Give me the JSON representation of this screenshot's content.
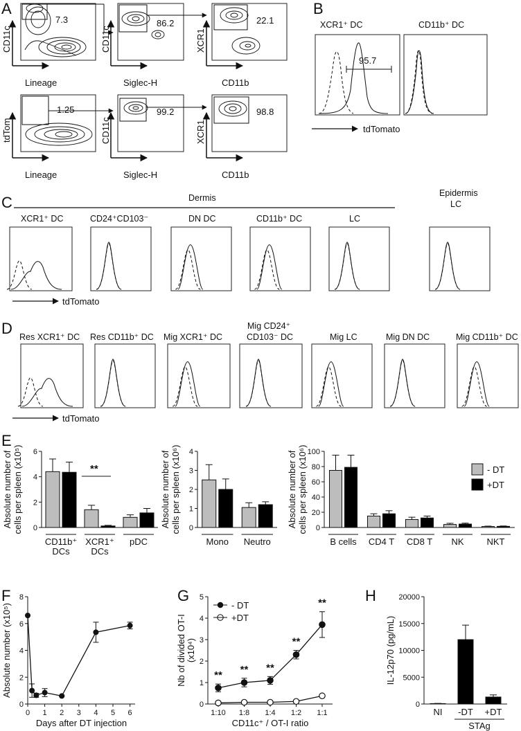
{
  "panels": {
    "A": {
      "letter": "A",
      "row1": [
        {
          "y": "CD11c",
          "x": "Lineage",
          "val": "7.3"
        },
        {
          "y": "CD11c",
          "x": "Siglec-H",
          "val": "86.2"
        },
        {
          "y": "XCR1",
          "x": "CD11b",
          "val": "22.1"
        }
      ],
      "row2": [
        {
          "y": "tdTom",
          "x": "Lineage",
          "val": "1.25"
        },
        {
          "y": "CD11c",
          "x": "Siglec-H",
          "val": "99.2"
        },
        {
          "y": "XCR1",
          "x": "CD11b",
          "val": "98.8"
        }
      ]
    },
    "B": {
      "letter": "B",
      "titles": [
        "XCR1⁺ DC",
        "CD11b⁺ DC"
      ],
      "val": "95.7",
      "xlabel": "tdTomato"
    },
    "C": {
      "letter": "C",
      "group_dermis": "Dermis",
      "group_epidermis_1": "Epidermis",
      "group_epidermis_2": "LC",
      "titles": [
        "XCR1⁺ DC",
        "CD24⁺CD103⁻",
        "DN DC",
        "CD11b⁺ DC",
        "LC"
      ],
      "xlabel": "tdTomato"
    },
    "D": {
      "letter": "D",
      "titles": [
        "Res XCR1⁺ DC",
        "Res CD11b⁺ DC",
        "Mig XCR1⁺ DC",
        "Mig CD24⁺",
        "CD103⁻ DC",
        "Mig LC",
        "Mig DN DC",
        "Mig CD11b⁺ DC"
      ],
      "xlabel": "tdTomato"
    },
    "E": {
      "letter": "E"
    },
    "F": {
      "letter": "F"
    },
    "G": {
      "letter": "G"
    },
    "H": {
      "letter": "H"
    }
  },
  "colors": {
    "minus_dt": "#bdbdbd",
    "plus_dt": "#000000"
  },
  "chart_data": [
    {
      "type": "bar",
      "panel": "E1",
      "ylabel_1": "Absolute number of",
      "ylabel_2": "cells per spleen (x10⁵)",
      "ylim": [
        0,
        6
      ],
      "yticks": [
        "0",
        "2",
        "4",
        "6"
      ],
      "categories": [
        "CD11b⁺ DCs",
        "XCR1⁺ DCs",
        "pDC"
      ],
      "series": [
        {
          "name": "- DT",
          "values": [
            4.4,
            1.4,
            0.8
          ],
          "err": [
            1.0,
            0.35,
            0.2
          ]
        },
        {
          "name": "+DT",
          "values": [
            4.35,
            0.12,
            1.15
          ],
          "err": [
            0.8,
            0.05,
            0.35
          ]
        }
      ],
      "annotation": "**"
    },
    {
      "type": "bar",
      "panel": "E2",
      "ylabel_1": "Absolute number of",
      "ylabel_2": "cells per spleen (x10⁶)",
      "ylim": [
        0,
        4
      ],
      "yticks": [
        "0",
        "1",
        "2",
        "3",
        "4"
      ],
      "categories": [
        "Mono",
        "Neutro"
      ],
      "series": [
        {
          "name": "- DT",
          "values": [
            2.5,
            1.05
          ],
          "err": [
            0.8,
            0.25
          ]
        },
        {
          "name": "+DT",
          "values": [
            2.0,
            1.2
          ],
          "err": [
            0.55,
            0.15
          ]
        }
      ]
    },
    {
      "type": "bar",
      "panel": "E3",
      "ylabel_1": "Absolute number of",
      "ylabel_2": "cells per spleen (x10⁶)",
      "ylim": [
        0,
        100
      ],
      "yticks": [
        "0",
        "20",
        "40",
        "60",
        "80",
        "100"
      ],
      "categories": [
        "B cells",
        "CD4 T",
        "CD8 T",
        "NK",
        "NKT"
      ],
      "series": [
        {
          "name": "- DT",
          "values": [
            75,
            15,
            10.5,
            4,
            1.3
          ],
          "err": [
            20,
            3,
            3,
            1.5,
            0.5
          ]
        },
        {
          "name": "+DT",
          "values": [
            79,
            18,
            12.5,
            4.5,
            1.5
          ],
          "err": [
            16,
            4,
            2.5,
            1.2,
            0.5
          ]
        }
      ],
      "legend": [
        "- DT",
        "+DT"
      ]
    },
    {
      "type": "line",
      "panel": "F",
      "xlabel": "Days after DT injection",
      "ylabel": "Absolute number (x10⁵)",
      "xlim": [
        0,
        6.3
      ],
      "ylim": [
        0,
        8
      ],
      "xticks": [
        "0",
        "1",
        "2",
        "3",
        "4",
        "5",
        "6"
      ],
      "yticks": [
        "0",
        "2",
        "4",
        "6",
        "8"
      ],
      "x": [
        0,
        0.25,
        0.5,
        1,
        2,
        4,
        6
      ],
      "y": [
        6.6,
        1.0,
        0.65,
        0.85,
        0.6,
        5.35,
        5.85
      ],
      "err": [
        0,
        0.5,
        0.15,
        0.3,
        0.05,
        0.75,
        0.25
      ]
    },
    {
      "type": "line",
      "panel": "G",
      "xlabel": "CD11c⁺ / OT-I ratio",
      "ylabel_1": "Nb of divided OT-I",
      "ylabel_2": "(x10⁴)",
      "ylim": [
        0,
        5
      ],
      "yticks": [
        "0",
        "1",
        "2",
        "3",
        "4",
        "5"
      ],
      "categories": [
        "1:10",
        "1:8",
        "1:4",
        "1:2",
        "1:1"
      ],
      "series": [
        {
          "name": "- DT",
          "values": [
            0.75,
            1.0,
            1.1,
            2.3,
            3.7
          ],
          "err": [
            0.18,
            0.2,
            0.18,
            0.2,
            0.6
          ]
        },
        {
          "name": "+DT",
          "values": [
            0.05,
            0.08,
            0.08,
            0.12,
            0.38
          ],
          "err": [
            0.02,
            0.02,
            0.02,
            0.03,
            0.05
          ]
        }
      ],
      "stars": [
        "**",
        "**",
        "**",
        "**",
        "**"
      ],
      "legend": [
        "- DT",
        "+DT"
      ]
    },
    {
      "type": "bar",
      "panel": "H",
      "ylabel": "IL-12p70 (pg/mL)",
      "ylim": [
        0,
        20000
      ],
      "yticks": [
        "0",
        "5000",
        "10000",
        "15000",
        "20000"
      ],
      "categories": [
        "NI",
        "-DT",
        "+DT"
      ],
      "values": [
        80,
        12000,
        1300
      ],
      "err": [
        30,
        2700,
        400
      ],
      "group_label": "STAg"
    }
  ]
}
